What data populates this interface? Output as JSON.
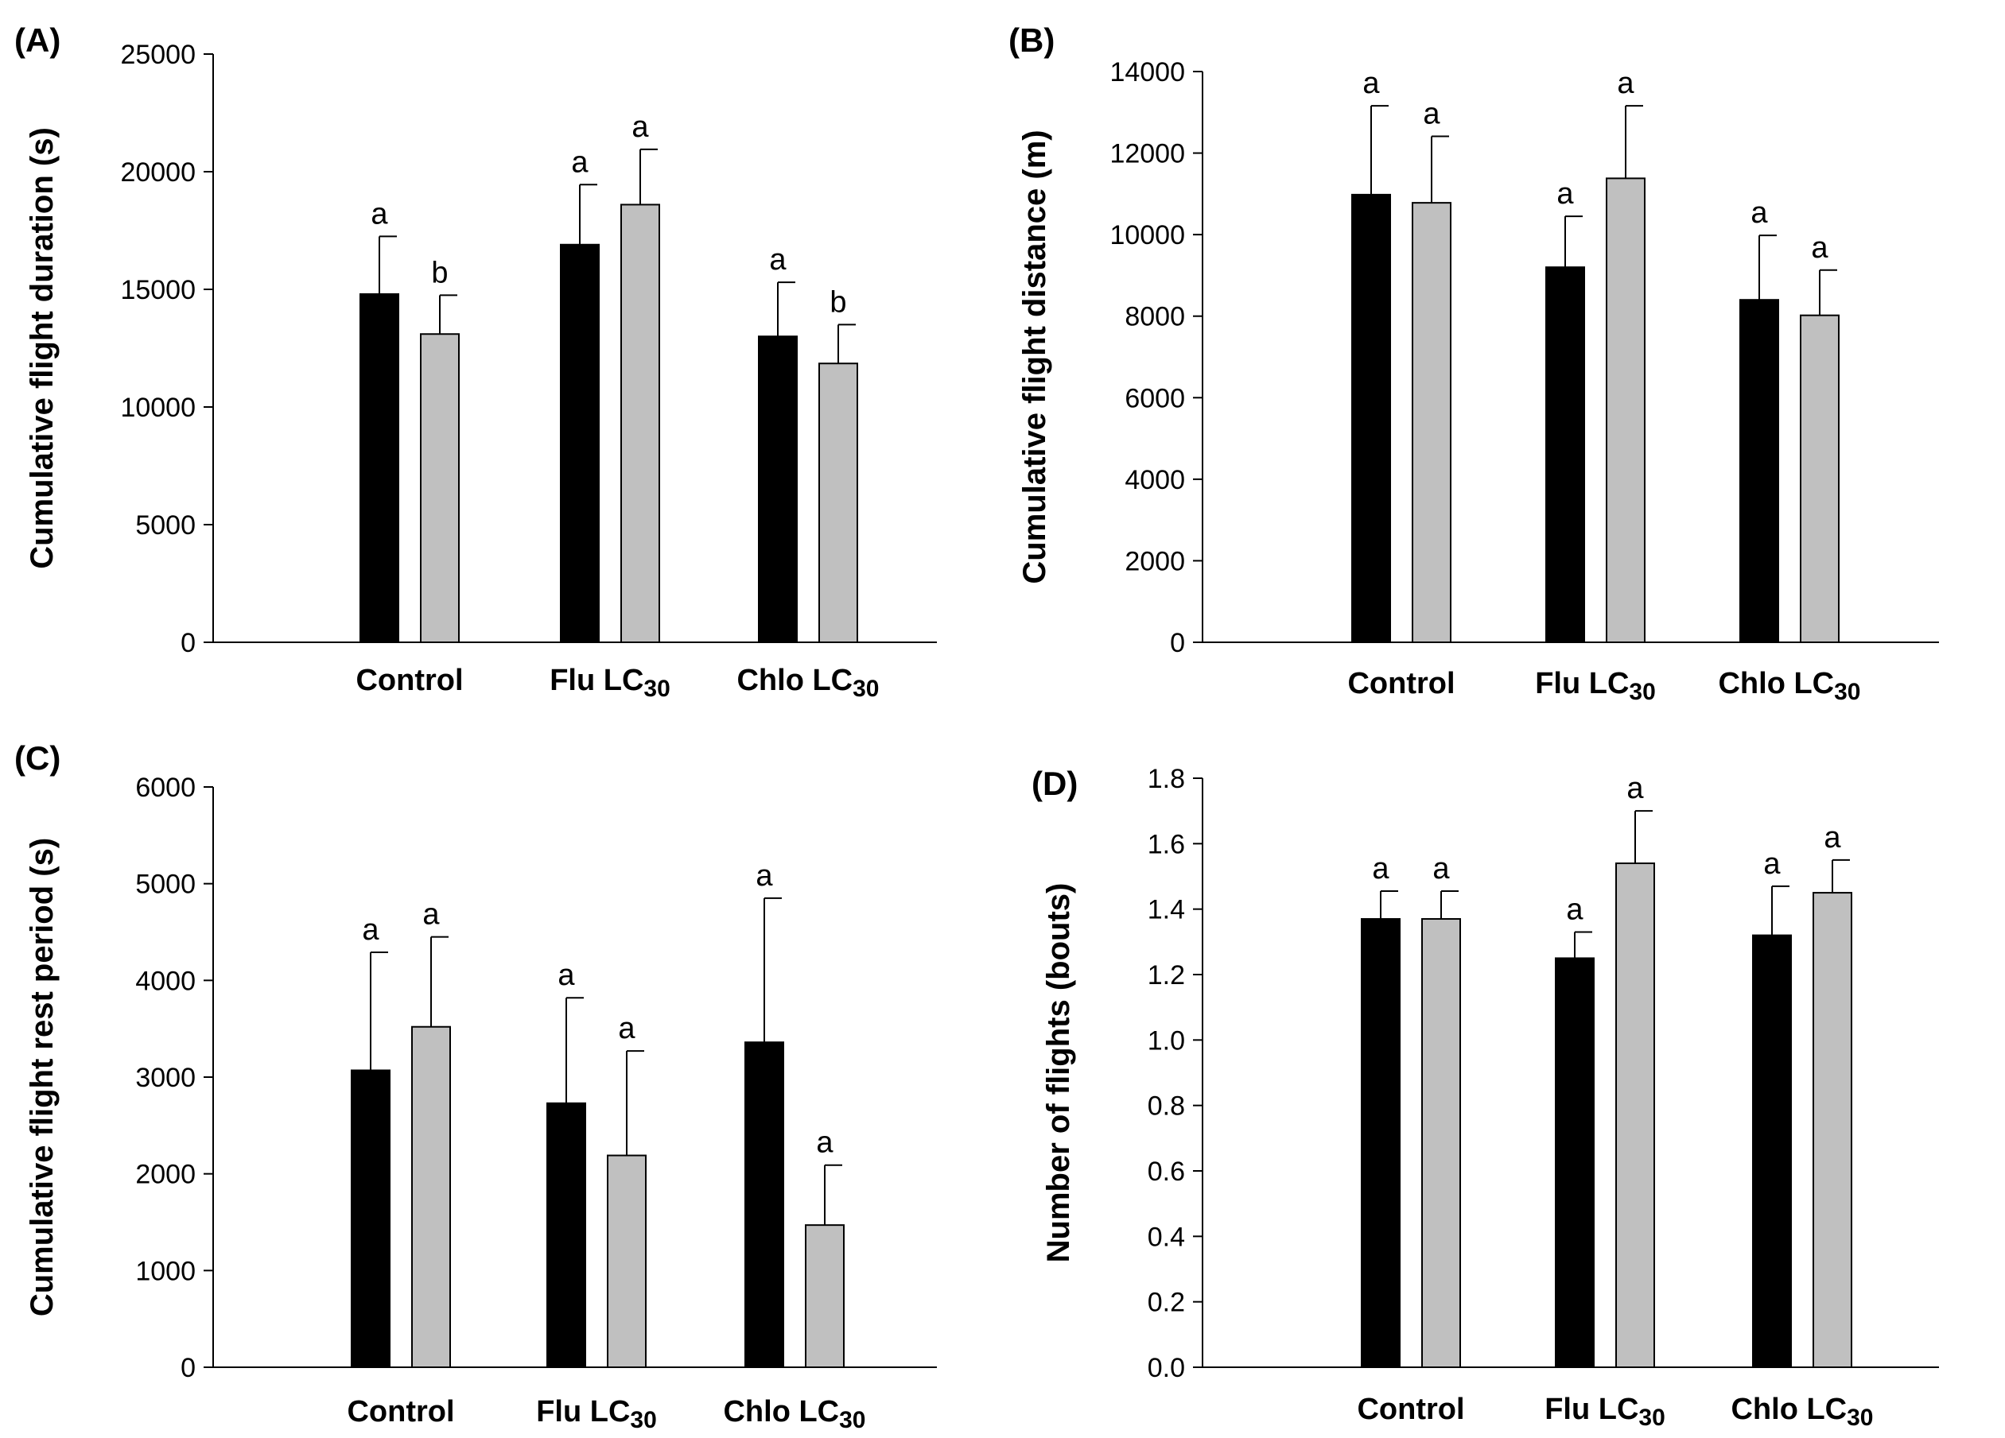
{
  "chart_data": [
    {
      "id": "A",
      "panel_label": "(A)",
      "type": "bar",
      "ylabel": "Cumulative flight duration (s)",
      "categories": [
        {
          "name": "Control",
          "sub": ""
        },
        {
          "name": "Flu LC",
          "sub": "30"
        },
        {
          "name": "Chlo LC",
          "sub": "30"
        }
      ],
      "ylim": [
        0,
        25000
      ],
      "yticks": [
        "0",
        "5000",
        "10000",
        "15000",
        "20000",
        "25000"
      ],
      "series": [
        {
          "color": "#000000",
          "values": [
            14800,
            16900,
            13000
          ],
          "errors": [
            2450,
            2550,
            2300
          ],
          "letters": [
            "a",
            "a",
            "a"
          ]
        },
        {
          "color": "#c0c0c0",
          "values": [
            13100,
            18600,
            11850
          ],
          "errors": [
            1650,
            2350,
            1650
          ],
          "letters": [
            "b",
            "a",
            "b"
          ]
        }
      ]
    },
    {
      "id": "B",
      "panel_label": "(B)",
      "type": "bar",
      "ylabel": "Cumulative flight distance (m)",
      "categories": [
        {
          "name": "Control",
          "sub": ""
        },
        {
          "name": "Flu LC",
          "sub": "30"
        },
        {
          "name": "Chlo LC",
          "sub": "30"
        }
      ],
      "ylim": [
        0,
        14000
      ],
      "yticks": [
        "0",
        "2000",
        "4000",
        "6000",
        "8000",
        "10000",
        "12000",
        "14000"
      ],
      "series": [
        {
          "color": "#000000",
          "values": [
            10980,
            9200,
            8400
          ],
          "errors": [
            2180,
            1250,
            1580
          ],
          "letters": [
            "a",
            "a",
            "a"
          ]
        },
        {
          "color": "#c0c0c0",
          "values": [
            10780,
            11380,
            8020
          ],
          "errors": [
            1630,
            1780,
            1110
          ],
          "letters": [
            "a",
            "a",
            "a"
          ]
        }
      ]
    },
    {
      "id": "C",
      "panel_label": "(C)",
      "type": "bar",
      "ylabel": "Cumulative flight rest period (s)",
      "categories": [
        {
          "name": "Control",
          "sub": ""
        },
        {
          "name": "Flu LC",
          "sub": "30"
        },
        {
          "name": "Chlo LC",
          "sub": "30"
        }
      ],
      "ylim": [
        0,
        6000
      ],
      "yticks": [
        "0",
        "1000",
        "2000",
        "3000",
        "4000",
        "5000",
        "6000"
      ],
      "series": [
        {
          "color": "#000000",
          "values": [
            3070,
            2730,
            3360
          ],
          "errors": [
            1220,
            1090,
            1490
          ],
          "letters": [
            "a",
            "a",
            "a"
          ]
        },
        {
          "color": "#c0c0c0",
          "values": [
            3520,
            2190,
            1470
          ],
          "errors": [
            930,
            1080,
            620
          ],
          "letters": [
            "a",
            "a",
            "a"
          ]
        }
      ]
    },
    {
      "id": "D",
      "panel_label": "(D)",
      "type": "bar",
      "ylabel": "Number of flights (bouts)",
      "categories": [
        {
          "name": "Control",
          "sub": ""
        },
        {
          "name": "Flu LC",
          "sub": "30"
        },
        {
          "name": "Chlo LC",
          "sub": "30"
        }
      ],
      "ylim": [
        0,
        1.8
      ],
      "yticks": [
        "0.0",
        "0.2",
        "0.4",
        "0.6",
        "0.8",
        "1.0",
        "1.2",
        "1.4",
        "1.6",
        "1.8"
      ],
      "series": [
        {
          "color": "#000000",
          "values": [
            1.37,
            1.25,
            1.32
          ],
          "errors": [
            0.085,
            0.08,
            0.15
          ],
          "letters": [
            "a",
            "a",
            "a"
          ]
        },
        {
          "color": "#c0c0c0",
          "values": [
            1.37,
            1.54,
            1.45
          ],
          "errors": [
            0.085,
            0.16,
            0.1
          ],
          "letters": [
            "a",
            "a",
            "a"
          ]
        }
      ]
    }
  ]
}
